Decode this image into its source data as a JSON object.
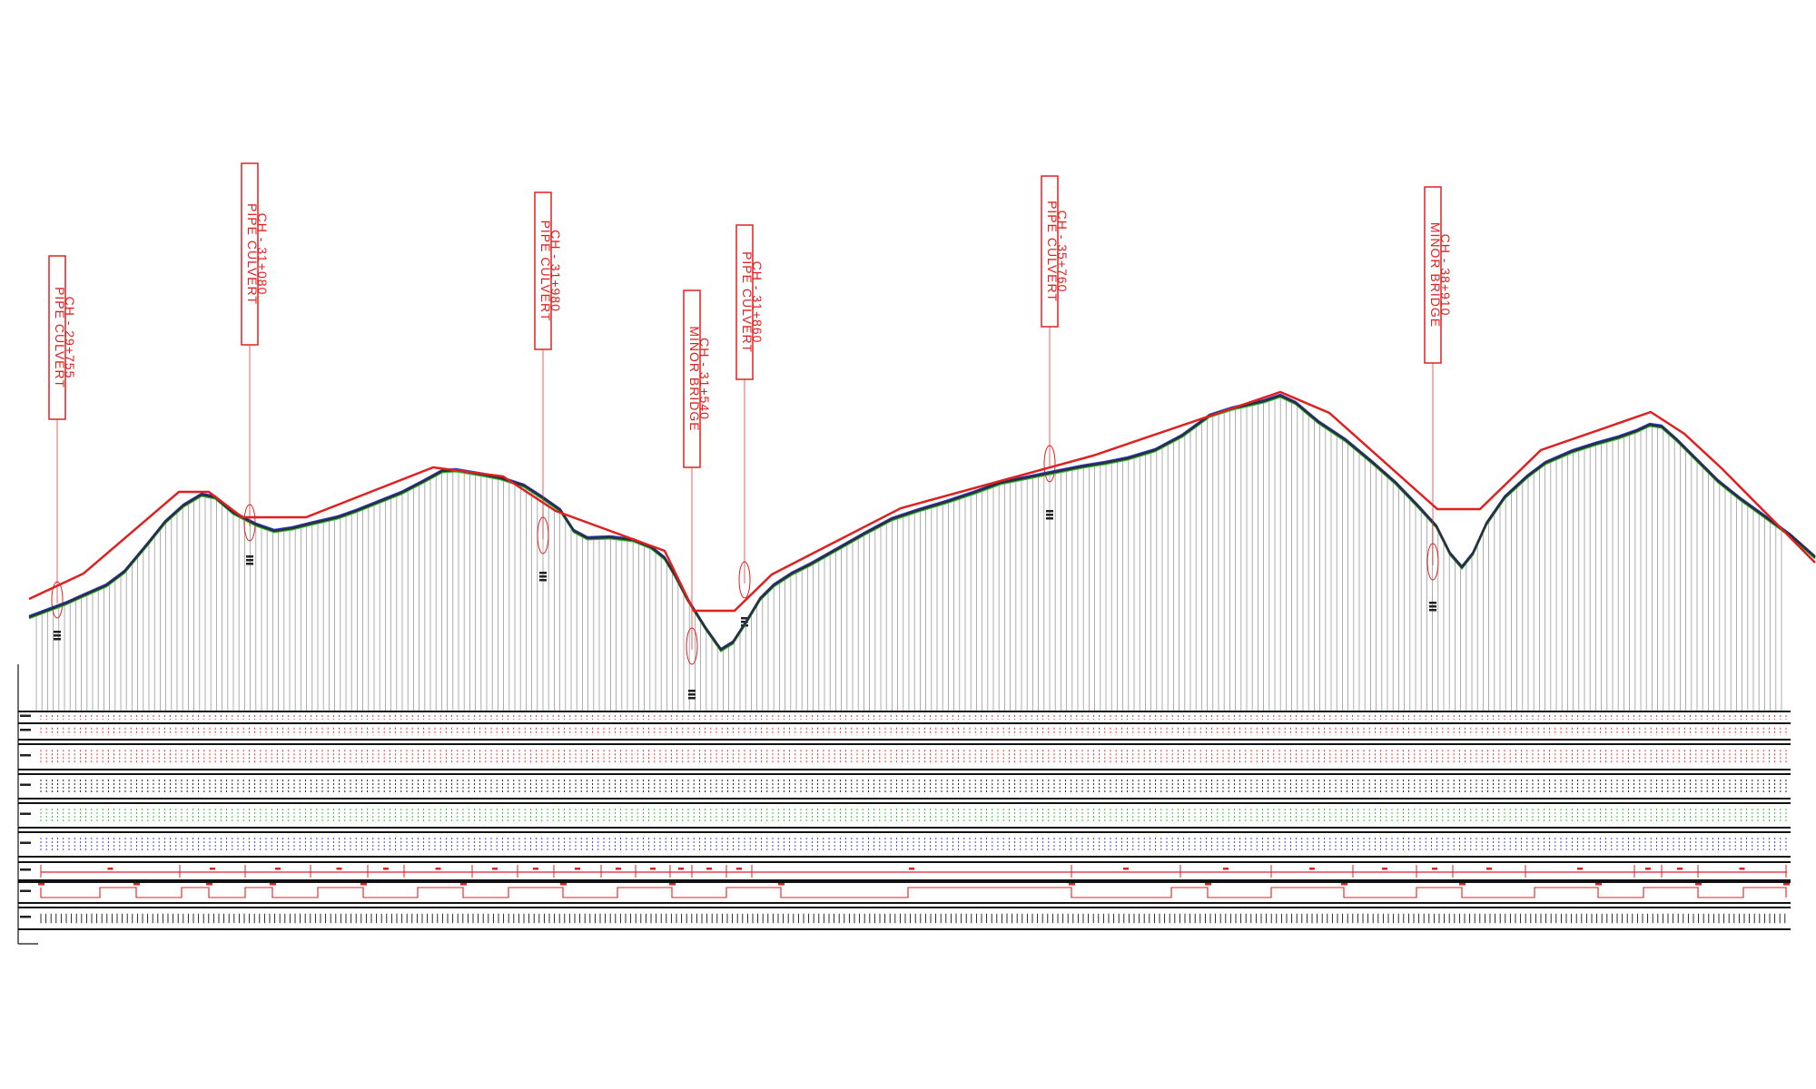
{
  "colors": {
    "design_line": "#e02020",
    "ground_line": "#2b2f3a",
    "ground_alt_green": "#2db52d",
    "ground_alt_blue": "#2a3bd6",
    "vertical_hatch": "#9a9a9a",
    "band_red": "#e02020",
    "band_green": "#2db52d",
    "band_blue": "#2a3bd6",
    "band_black": "#111111"
  },
  "structures": [
    {
      "line1": "PIPE CULVERT",
      "line2": "CH - 29+755"
    },
    {
      "line1": "PIPE CULVERT",
      "line2": "CH - 31+080"
    },
    {
      "line1": "PIPE CULVERT",
      "line2": "CH - 31+980"
    },
    {
      "line1": "MINOR BRIDGE",
      "line2": "CH - 31+540"
    },
    {
      "line1": "PIPE CULVERT",
      "line2": "CH - 31+860"
    },
    {
      "line1": "PIPE CULVERT",
      "line2": "CH - 35+760"
    },
    {
      "line1": "MINOR BRIDGE",
      "line2": "CH - 38+910"
    }
  ],
  "profile": {
    "design_points": [
      [
        0,
        660
      ],
      [
        60,
        632
      ],
      [
        165,
        542
      ],
      [
        198,
        542
      ],
      [
        235,
        570
      ],
      [
        305,
        570
      ],
      [
        445,
        515
      ],
      [
        522,
        525
      ],
      [
        580,
        563
      ],
      [
        700,
        607
      ],
      [
        732,
        673
      ],
      [
        777,
        673
      ],
      [
        818,
        633
      ],
      [
        960,
        560
      ],
      [
        1172,
        502
      ],
      [
        1378,
        432
      ],
      [
        1432,
        455
      ],
      [
        1551,
        561
      ],
      [
        1598,
        561
      ],
      [
        1665,
        496
      ],
      [
        1786,
        454
      ],
      [
        1823,
        478
      ],
      [
        1864,
        516
      ],
      [
        1967,
        620
      ]
    ],
    "ground_points": [
      [
        0,
        680
      ],
      [
        40,
        665
      ],
      [
        60,
        656
      ],
      [
        85,
        645
      ],
      [
        105,
        630
      ],
      [
        130,
        600
      ],
      [
        150,
        575
      ],
      [
        170,
        557
      ],
      [
        190,
        545
      ],
      [
        205,
        548
      ],
      [
        225,
        565
      ],
      [
        250,
        578
      ],
      [
        270,
        585
      ],
      [
        290,
        582
      ],
      [
        310,
        577
      ],
      [
        340,
        570
      ],
      [
        360,
        563
      ],
      [
        385,
        553
      ],
      [
        410,
        543
      ],
      [
        435,
        530
      ],
      [
        455,
        519
      ],
      [
        470,
        518
      ],
      [
        500,
        523
      ],
      [
        520,
        527
      ],
      [
        545,
        535
      ],
      [
        565,
        548
      ],
      [
        585,
        562
      ],
      [
        600,
        585
      ],
      [
        615,
        593
      ],
      [
        640,
        592
      ],
      [
        665,
        595
      ],
      [
        685,
        603
      ],
      [
        700,
        615
      ],
      [
        712,
        635
      ],
      [
        725,
        660
      ],
      [
        745,
        692
      ],
      [
        762,
        716
      ],
      [
        775,
        708
      ],
      [
        790,
        685
      ],
      [
        805,
        660
      ],
      [
        820,
        645
      ],
      [
        840,
        632
      ],
      [
        860,
        622
      ],
      [
        890,
        605
      ],
      [
        920,
        588
      ],
      [
        950,
        572
      ],
      [
        980,
        562
      ],
      [
        1010,
        553
      ],
      [
        1040,
        543
      ],
      [
        1070,
        532
      ],
      [
        1100,
        526
      ],
      [
        1135,
        519
      ],
      [
        1160,
        514
      ],
      [
        1185,
        510
      ],
      [
        1210,
        505
      ],
      [
        1240,
        496
      ],
      [
        1270,
        480
      ],
      [
        1300,
        458
      ],
      [
        1325,
        450
      ],
      [
        1360,
        442
      ],
      [
        1378,
        436
      ],
      [
        1395,
        444
      ],
      [
        1420,
        465
      ],
      [
        1450,
        485
      ],
      [
        1480,
        510
      ],
      [
        1505,
        532
      ],
      [
        1530,
        558
      ],
      [
        1550,
        580
      ],
      [
        1565,
        610
      ],
      [
        1578,
        625
      ],
      [
        1590,
        610
      ],
      [
        1605,
        577
      ],
      [
        1625,
        548
      ],
      [
        1650,
        525
      ],
      [
        1670,
        510
      ],
      [
        1700,
        497
      ],
      [
        1725,
        489
      ],
      [
        1750,
        482
      ],
      [
        1770,
        475
      ],
      [
        1785,
        468
      ],
      [
        1798,
        470
      ],
      [
        1815,
        485
      ],
      [
        1835,
        505
      ],
      [
        1860,
        530
      ],
      [
        1885,
        550
      ],
      [
        1910,
        568
      ],
      [
        1940,
        590
      ],
      [
        1967,
        614
      ]
    ]
  },
  "structure_positions_hint": "Labels rendered vertically above each crossing",
  "bands": [
    {
      "kind": "tick-red"
    },
    {
      "kind": "tick-red"
    },
    {
      "kind": "tick-black"
    },
    {
      "kind": "tick-green"
    },
    {
      "kind": "tick-blue"
    },
    {
      "kind": "segments-red"
    },
    {
      "kind": "steps-red"
    },
    {
      "kind": "tick-black-dense"
    }
  ]
}
